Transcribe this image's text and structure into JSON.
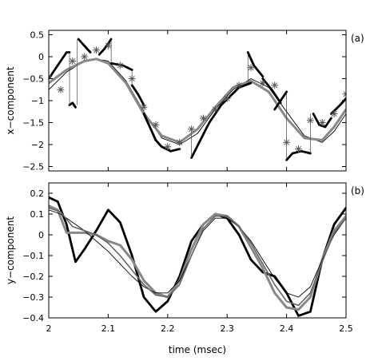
{
  "chart_data": [
    {
      "type": "line",
      "panel_label": "(a)",
      "ylabel": "x−component",
      "xlim": [
        2.0,
        2.5
      ],
      "ylim": [
        -2.6,
        0.6
      ],
      "x_ticks": [
        2,
        2.1,
        2.2,
        2.3,
        2.4,
        2.5
      ],
      "y_ticks": [
        0.5,
        0,
        -0.5,
        -1,
        -1.5,
        -2,
        -2.5
      ],
      "y_tick_labels": [
        "0.5",
        "0",
        "−0.5",
        "−1",
        "−1.5",
        "−2",
        "−2.5"
      ],
      "grid": false,
      "series": [
        {
          "color": "#000000",
          "width": 0.9,
          "x": [
            2.0,
            2.03,
            2.06,
            2.08,
            2.1,
            2.13,
            2.16,
            2.19,
            2.22,
            2.25,
            2.28,
            2.31,
            2.34,
            2.37,
            2.4,
            2.43,
            2.46,
            2.48,
            2.5
          ],
          "y": [
            -0.75,
            -0.35,
            -0.1,
            -0.05,
            -0.1,
            -0.55,
            -1.25,
            -1.85,
            -2.0,
            -1.75,
            -1.2,
            -0.75,
            -0.5,
            -0.7,
            -1.25,
            -1.8,
            -1.95,
            -1.7,
            -1.3
          ]
        },
        {
          "color": "#888888",
          "width": 3.0,
          "x": [
            2.0,
            2.03,
            2.06,
            2.08,
            2.1,
            2.13,
            2.16,
            2.19,
            2.22,
            2.25,
            2.28,
            2.31,
            2.34,
            2.37,
            2.4,
            2.43,
            2.46,
            2.48,
            2.5
          ],
          "y": [
            -0.6,
            -0.3,
            -0.1,
            -0.05,
            -0.15,
            -0.6,
            -1.3,
            -1.8,
            -1.95,
            -1.65,
            -1.15,
            -0.7,
            -0.55,
            -0.8,
            -1.4,
            -1.85,
            -1.9,
            -1.6,
            -1.2
          ]
        },
        {
          "color": "#000000",
          "width": 2.8,
          "x": [
            2.0,
            2.01,
            2.02,
            2.03,
            2.035
          ],
          "y": [
            -0.5,
            -0.3,
            -0.1,
            0.1,
            0.1
          ]
        },
        {
          "color": "#000000",
          "width": 2.8,
          "x": [
            2.035,
            2.04,
            2.045
          ],
          "y": [
            -1.1,
            -1.05,
            -1.15
          ]
        },
        {
          "color": "#000000",
          "width": 2.8,
          "x": [
            2.05,
            2.06,
            2.07
          ],
          "y": [
            0.4,
            0.25,
            0.1
          ]
        },
        {
          "color": "#000000",
          "width": 2.8,
          "x": [
            2.085,
            2.095,
            2.105
          ],
          "y": [
            0.05,
            0.2,
            0.4
          ]
        },
        {
          "color": "#000000",
          "width": 2.8,
          "x": [
            2.105,
            2.125,
            2.14
          ],
          "y": [
            -0.15,
            -0.2,
            -0.3
          ]
        },
        {
          "color": "#000000",
          "width": 2.8,
          "x": [
            2.14,
            2.15,
            2.16
          ],
          "y": [
            -0.65,
            -0.85,
            -1.1
          ]
        },
        {
          "color": "#000000",
          "width": 2.8,
          "x": [
            2.16,
            2.17,
            2.18,
            2.19
          ],
          "y": [
            -1.3,
            -1.6,
            -1.9,
            -2.05
          ]
        },
        {
          "color": "#000000",
          "width": 2.8,
          "x": [
            2.19,
            2.205,
            2.22
          ],
          "y": [
            -2.05,
            -2.15,
            -2.1
          ]
        },
        {
          "color": "#000000",
          "width": 2.8,
          "x": [
            2.24,
            2.255,
            2.27,
            2.29,
            2.32,
            2.34
          ],
          "y": [
            -2.3,
            -1.9,
            -1.5,
            -1.1,
            -0.7,
            -0.6
          ]
        },
        {
          "color": "#000000",
          "width": 2.8,
          "x": [
            2.335,
            2.345,
            2.36
          ],
          "y": [
            0.1,
            -0.2,
            -0.45
          ]
        },
        {
          "color": "#000000",
          "width": 2.8,
          "x": [
            2.36,
            2.375,
            2.39
          ],
          "y": [
            -0.5,
            -0.75,
            -1.05
          ]
        },
        {
          "color": "#000000",
          "width": 2.8,
          "x": [
            2.4,
            2.41,
            2.425,
            2.44
          ],
          "y": [
            -2.35,
            -2.2,
            -2.15,
            -2.2
          ]
        },
        {
          "color": "#000000",
          "width": 2.8,
          "x": [
            2.445,
            2.455,
            2.465,
            2.475
          ],
          "y": [
            -1.3,
            -1.55,
            -1.6,
            -1.4
          ]
        },
        {
          "color": "#000000",
          "width": 2.8,
          "x": [
            2.38,
            2.39,
            2.4
          ],
          "y": [
            -1.2,
            -1.0,
            -0.8
          ]
        },
        {
          "color": "#000000",
          "width": 2.8,
          "x": [
            2.475,
            2.49,
            2.5
          ],
          "y": [
            -1.3,
            -1.1,
            -0.95
          ]
        }
      ],
      "markers": {
        "symbol": "asterisk",
        "color": "#555555",
        "x": [
          2.0,
          2.02,
          2.04,
          2.06,
          2.08,
          2.1,
          2.12,
          2.14,
          2.16,
          2.18,
          2.2,
          2.22,
          2.24,
          2.26,
          2.28,
          2.3,
          2.32,
          2.34,
          2.36,
          2.38,
          2.4,
          2.42,
          2.44,
          2.46,
          2.48,
          2.5
        ],
        "y": [
          -0.45,
          -0.75,
          -0.1,
          0.0,
          0.15,
          0.25,
          -0.2,
          -0.5,
          -1.15,
          -1.55,
          -2.05,
          -1.95,
          -1.65,
          -1.4,
          -1.2,
          -0.95,
          -0.65,
          -0.25,
          -0.6,
          -0.65,
          -1.95,
          -2.1,
          -1.45,
          -1.5,
          -1.3,
          -0.85
        ]
      },
      "connectors": [
        {
          "x": 2.035,
          "y1": 0.1,
          "y2": -1.1
        },
        {
          "x": 2.048,
          "y1": -1.1,
          "y2": 0.4
        },
        {
          "x": 2.105,
          "y1": 0.4,
          "y2": -0.15
        },
        {
          "x": 2.14,
          "y1": -0.3,
          "y2": -0.65
        },
        {
          "x": 2.24,
          "y1": -1.75,
          "y2": -2.3
        },
        {
          "x": 2.335,
          "y1": -0.6,
          "y2": 0.1
        },
        {
          "x": 2.4,
          "y1": -0.8,
          "y2": -2.35
        },
        {
          "x": 2.44,
          "y1": -2.2,
          "y2": -1.3
        }
      ]
    },
    {
      "type": "line",
      "panel_label": "(b)",
      "ylabel": "y−component",
      "xlabel": "time (msec)",
      "xlim": [
        2.0,
        2.5
      ],
      "ylim": [
        -0.4,
        0.25
      ],
      "x_ticks": [
        2,
        2.1,
        2.2,
        2.3,
        2.4,
        2.5
      ],
      "x_tick_labels": [
        "2",
        "2.1",
        "2.2",
        "2.3",
        "2.4",
        "2.5"
      ],
      "y_ticks": [
        0.2,
        0.1,
        0,
        -0.1,
        -0.2,
        -0.3,
        -0.4
      ],
      "y_tick_labels": [
        "0.2",
        "0.1",
        "0",
        "−0.1",
        "−0.2",
        "−0.3",
        "−0.4"
      ],
      "grid": false,
      "series": [
        {
          "color": "#000000",
          "width": 2.8,
          "x": [
            2.0,
            2.015,
            2.03,
            2.045,
            2.06,
            2.08,
            2.1,
            2.12,
            2.14,
            2.16,
            2.18,
            2.2,
            2.22,
            2.24,
            2.26,
            2.28,
            2.3,
            2.32,
            2.34,
            2.36,
            2.38,
            2.4,
            2.42,
            2.44,
            2.46,
            2.48,
            2.5
          ],
          "y": [
            0.18,
            0.16,
            0.05,
            -0.13,
            -0.07,
            0.02,
            0.12,
            0.06,
            -0.1,
            -0.3,
            -0.37,
            -0.32,
            -0.2,
            -0.03,
            0.05,
            0.1,
            0.08,
            0.0,
            -0.12,
            -0.18,
            -0.2,
            -0.28,
            -0.39,
            -0.37,
            -0.12,
            0.05,
            0.13
          ]
        },
        {
          "color": "#888888",
          "width": 3.0,
          "x": [
            2.0,
            2.015,
            2.03,
            2.045,
            2.06,
            2.08,
            2.1,
            2.12,
            2.14,
            2.16,
            2.18,
            2.2,
            2.22,
            2.24,
            2.26,
            2.28,
            2.3,
            2.32,
            2.34,
            2.36,
            2.38,
            2.4,
            2.42,
            2.44,
            2.46,
            2.48,
            2.5
          ],
          "y": [
            0.14,
            0.12,
            0.01,
            0.01,
            0.01,
            0.0,
            -0.03,
            -0.05,
            -0.12,
            -0.22,
            -0.28,
            -0.3,
            -0.22,
            -0.07,
            0.05,
            0.1,
            0.09,
            0.04,
            -0.06,
            -0.16,
            -0.28,
            -0.35,
            -0.36,
            -0.3,
            -0.12,
            0.02,
            0.09
          ]
        },
        {
          "color": "#000000",
          "width": 0.9,
          "x": [
            2.0,
            2.02,
            2.04,
            2.06,
            2.08,
            2.1,
            2.12,
            2.14,
            2.16,
            2.18,
            2.2,
            2.22,
            2.24,
            2.26,
            2.28,
            2.3,
            2.32,
            2.34,
            2.36,
            2.38,
            2.4,
            2.42,
            2.44,
            2.46,
            2.48,
            2.5
          ],
          "y": [
            0.12,
            0.1,
            0.06,
            0.02,
            -0.03,
            -0.08,
            -0.14,
            -0.2,
            -0.25,
            -0.28,
            -0.28,
            -0.22,
            -0.1,
            0.02,
            0.08,
            0.08,
            0.04,
            -0.03,
            -0.12,
            -0.21,
            -0.28,
            -0.3,
            -0.25,
            -0.12,
            0.0,
            0.08
          ]
        },
        {
          "color": "#666666",
          "width": 1.6,
          "x": [
            2.0,
            2.02,
            2.04,
            2.06,
            2.08,
            2.1,
            2.12,
            2.14,
            2.16,
            2.18,
            2.2,
            2.22,
            2.24,
            2.26,
            2.28,
            2.3,
            2.32,
            2.34,
            2.36,
            2.38,
            2.4,
            2.42,
            2.44,
            2.46,
            2.48,
            2.5
          ],
          "y": [
            0.13,
            0.11,
            0.04,
            0.02,
            0.0,
            -0.04,
            -0.1,
            -0.17,
            -0.24,
            -0.29,
            -0.3,
            -0.24,
            -0.1,
            0.03,
            0.09,
            0.09,
            0.04,
            -0.04,
            -0.14,
            -0.24,
            -0.32,
            -0.34,
            -0.28,
            -0.13,
            0.01,
            0.08
          ]
        }
      ]
    }
  ]
}
